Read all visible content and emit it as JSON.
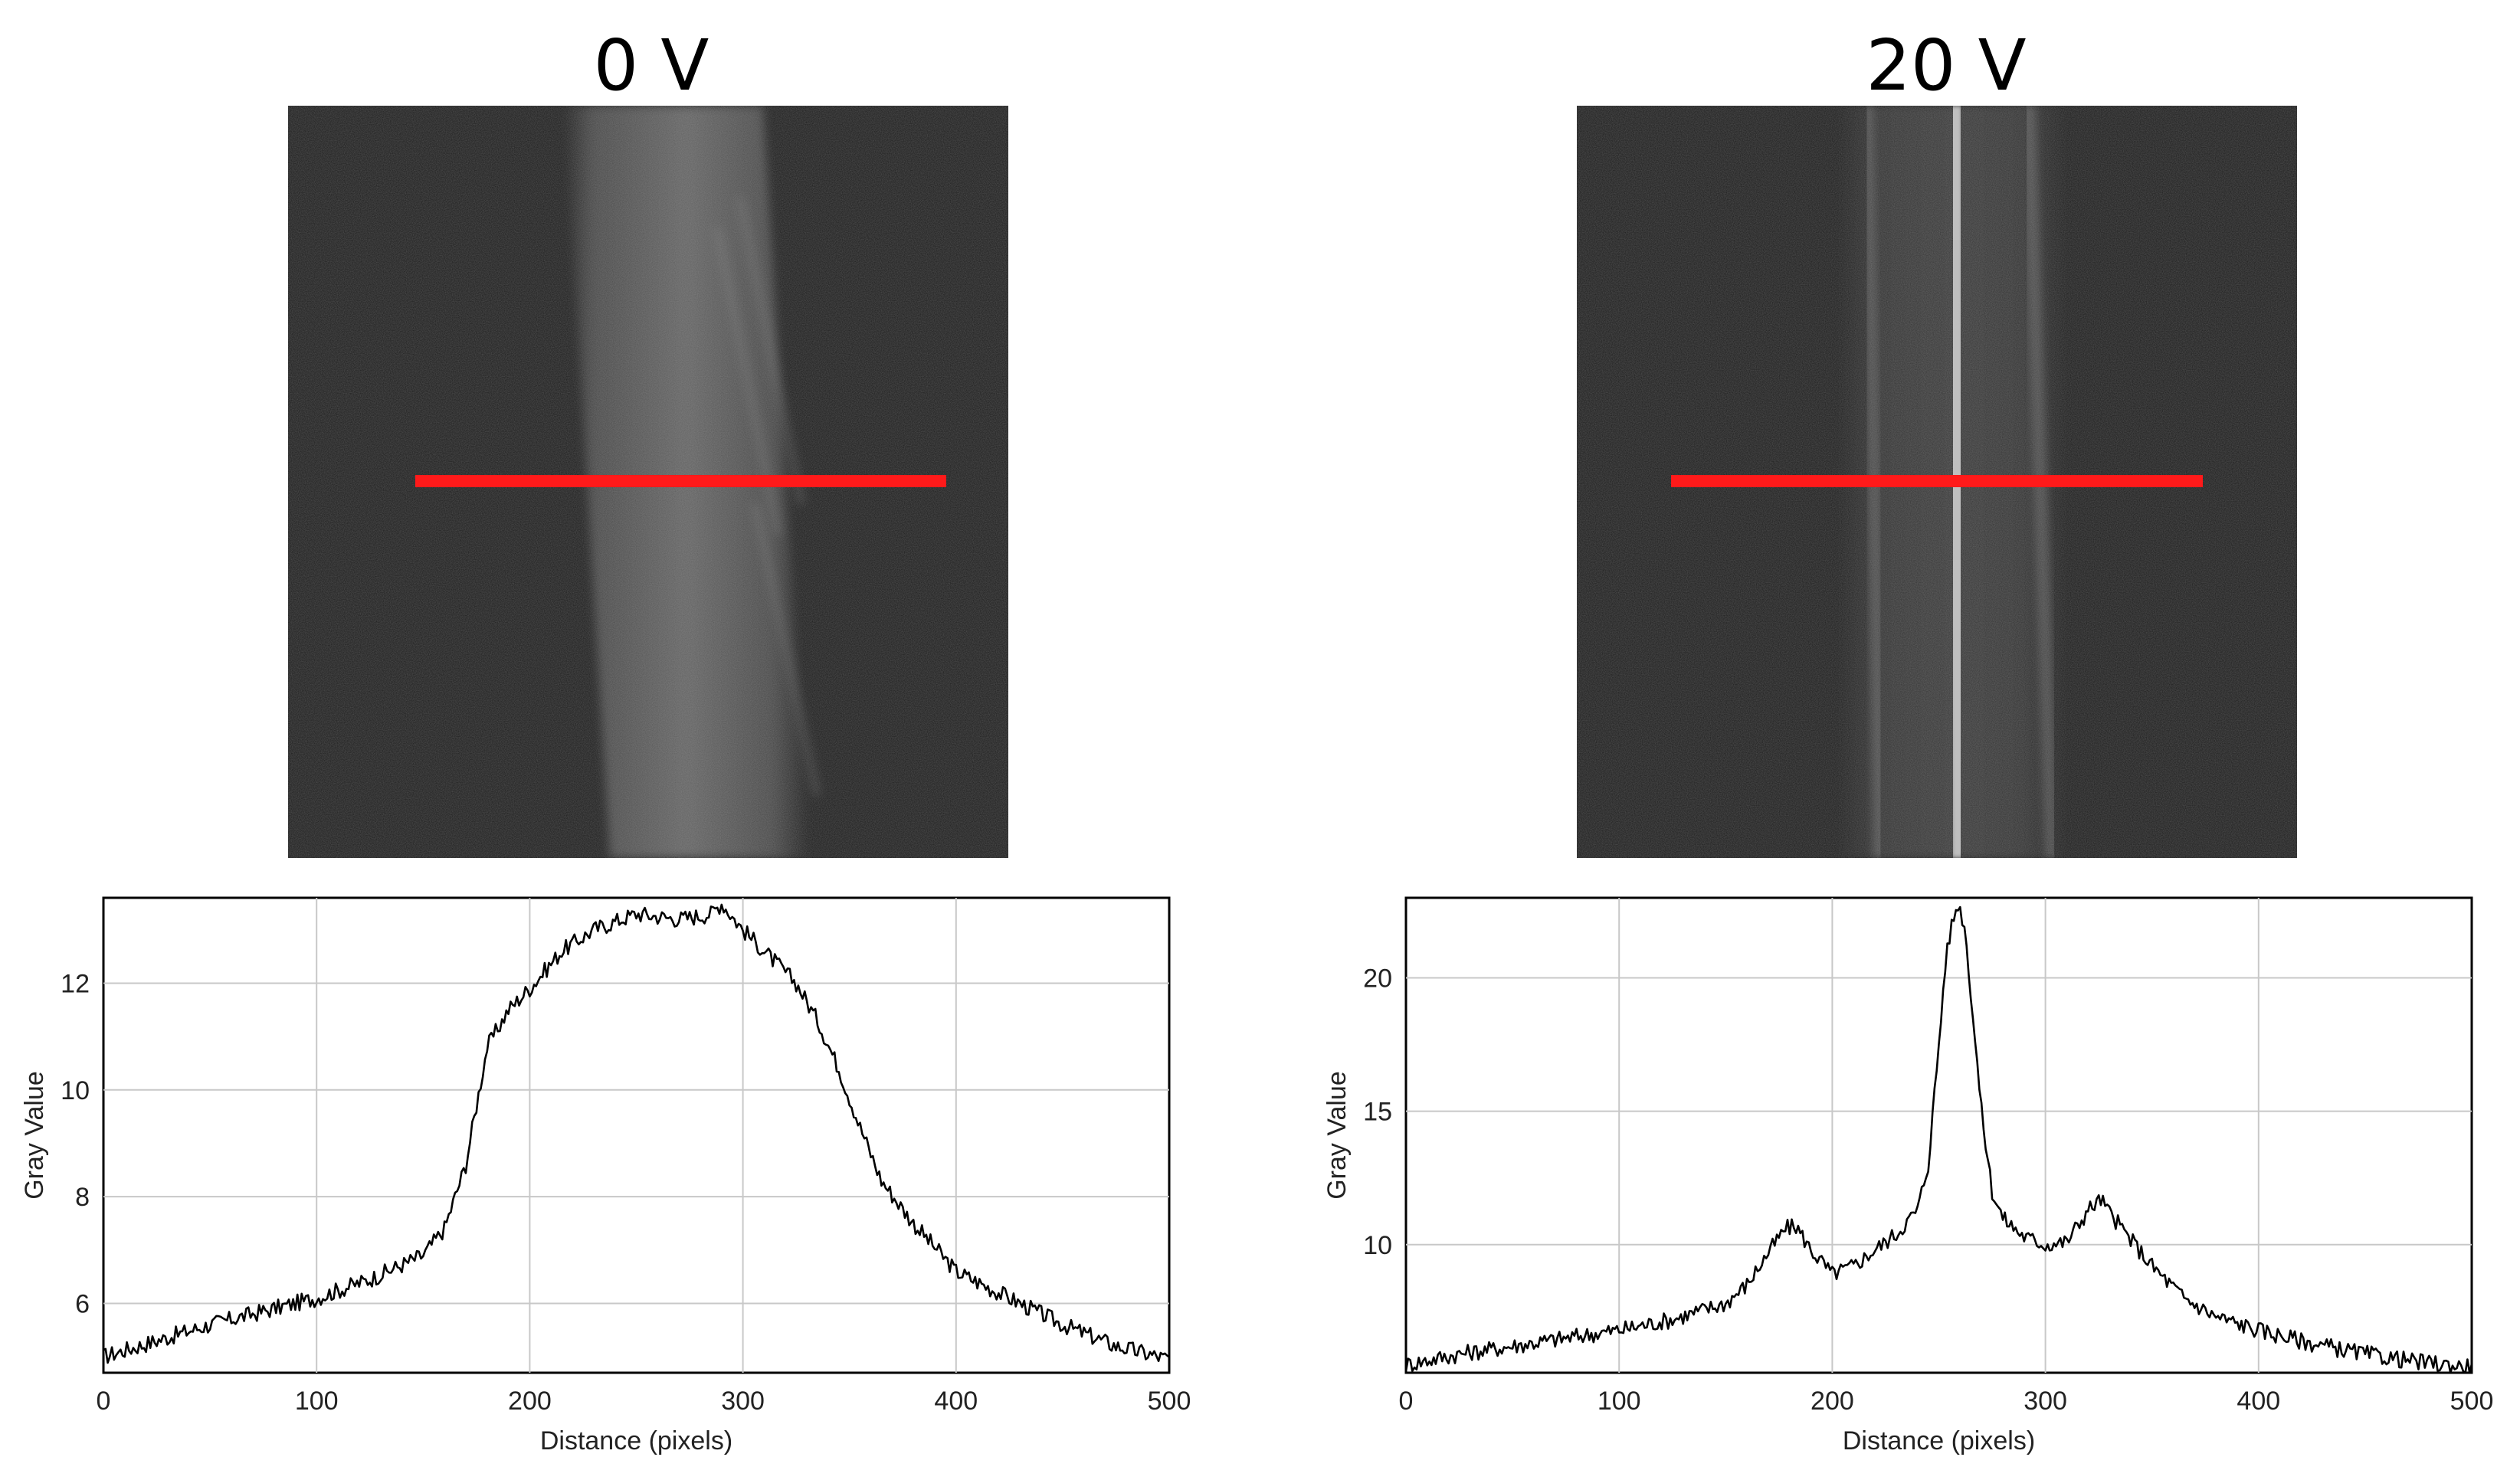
{
  "panels": [
    {
      "label": "0 V"
    },
    {
      "label": "20 V"
    }
  ],
  "colors": {
    "scan_line": "#ff1a1a",
    "micrograph_background": "#1a1a1a",
    "profile_line": "#000000",
    "grid": "#c8c8c8"
  },
  "chart_data": [
    {
      "type": "line",
      "title": "",
      "xlabel": "Distance (pixels)",
      "ylabel": "Gray Value",
      "xlim": [
        0,
        500
      ],
      "ylim": [
        4.7,
        13.6
      ],
      "xticks": [
        0,
        100,
        200,
        300,
        400,
        500
      ],
      "yticks": [
        6,
        8,
        10,
        12
      ],
      "grid": true,
      "legend": "none",
      "series": [
        {
          "x": [
            0,
            25,
            50,
            75,
            100,
            125,
            150,
            160,
            170,
            180,
            190,
            200,
            215,
            230,
            250,
            270,
            285,
            290,
            300,
            315,
            325,
            335,
            345,
            355,
            365,
            380,
            400,
            425,
            450,
            475,
            500
          ],
          "y": [
            5.0,
            5.3,
            5.6,
            5.85,
            6.1,
            6.45,
            6.9,
            7.4,
            8.6,
            10.8,
            11.5,
            11.9,
            12.6,
            13.0,
            13.3,
            13.2,
            13.3,
            13.5,
            13.0,
            12.4,
            12.0,
            11.3,
            10.4,
            9.3,
            8.3,
            7.5,
            6.6,
            6.1,
            5.6,
            5.2,
            4.95
          ]
        }
      ]
    },
    {
      "type": "line",
      "title": "",
      "xlabel": "Distance (pixels)",
      "ylabel": "Gray Value",
      "xlim": [
        0,
        500
      ],
      "ylim": [
        5.2,
        23.0
      ],
      "xticks": [
        0,
        100,
        200,
        300,
        400,
        500
      ],
      "yticks": [
        10,
        15,
        20
      ],
      "grid": true,
      "legend": "none",
      "series": [
        {
          "x": [
            0,
            25,
            50,
            75,
            100,
            125,
            150,
            160,
            170,
            178,
            183,
            190,
            200,
            210,
            220,
            230,
            240,
            245,
            250,
            253,
            256,
            259,
            262,
            265,
            270,
            275,
            280,
            290,
            300,
            310,
            320,
            326,
            330,
            340,
            350,
            365,
            380,
            400,
            425,
            450,
            475,
            500
          ],
          "y": [
            5.5,
            5.9,
            6.2,
            6.5,
            6.8,
            7.2,
            7.8,
            8.5,
            9.7,
            10.6,
            10.7,
            9.8,
            8.9,
            9.2,
            9.8,
            10.4,
            11.3,
            13.0,
            17.5,
            20.5,
            22.0,
            22.8,
            22.0,
            19.5,
            15.0,
            12.0,
            11.0,
            10.3,
            10.0,
            10.1,
            11.3,
            11.7,
            11.2,
            10.2,
            9.2,
            8.0,
            7.3,
            6.8,
            6.3,
            5.9,
            5.6,
            5.4
          ]
        }
      ]
    }
  ]
}
